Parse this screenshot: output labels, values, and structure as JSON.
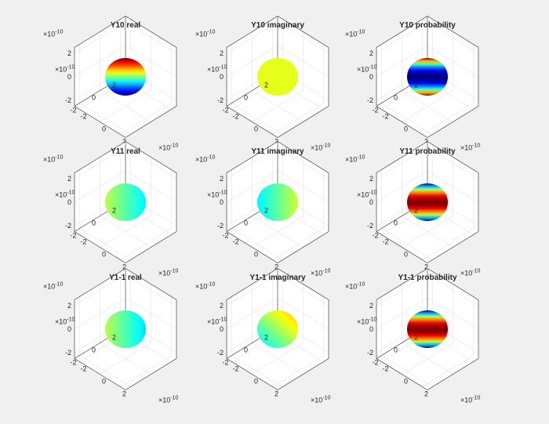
{
  "figure": {
    "background": "#f0f0f0",
    "axes_background": "#ffffff"
  },
  "chart_data": [
    {
      "type": "surface",
      "title": "Y10 real",
      "zlim": [
        -2,
        2
      ],
      "xlim": [
        -2,
        2
      ],
      "ylim": [
        -2,
        2
      ],
      "zticks": [
        "2",
        "0",
        "-2"
      ],
      "xticks": [
        "-2",
        "0",
        "2"
      ],
      "yticks": [
        "-2",
        "0",
        "2"
      ],
      "x_exponent": "10",
      "y_exponent": "10",
      "z_exponent": "10",
      "multiplier": "×10",
      "exponent_sign": "-",
      "colormap": "jet",
      "color_pattern": "vertical",
      "color_min": 0.0,
      "color_max": 1.0,
      "grid": true
    },
    {
      "type": "surface",
      "title": "Y10 imaginary",
      "zlim": [
        -2,
        2
      ],
      "xlim": [
        -2,
        2
      ],
      "ylim": [
        -2,
        2
      ],
      "zticks": [
        "2",
        "0",
        "-2"
      ],
      "xticks": [
        "-2",
        "0",
        "2"
      ],
      "yticks": [
        "-2",
        "0",
        "2"
      ],
      "x_exponent": "10",
      "y_exponent": "10",
      "z_exponent": "10",
      "multiplier": "×10",
      "exponent_sign": "-",
      "colormap": "jet",
      "color_pattern": "uniform",
      "color_min": 0.6,
      "color_max": 0.6,
      "grid": true
    },
    {
      "type": "surface",
      "title": "Y10 probability",
      "zlim": [
        -2,
        2
      ],
      "xlim": [
        -2,
        2
      ],
      "ylim": [
        -2,
        2
      ],
      "zticks": [
        "2",
        "0",
        "-2"
      ],
      "xticks": [
        "-2",
        "0",
        "2"
      ],
      "yticks": [
        "-2",
        "0",
        "2"
      ],
      "x_exponent": "10",
      "y_exponent": "10",
      "z_exponent": "10",
      "multiplier": "×10",
      "exponent_sign": "-",
      "colormap": "jet",
      "color_pattern": "poles-high",
      "color_min": 0.0,
      "color_max": 1.0,
      "grid": true
    },
    {
      "type": "surface",
      "title": "Y11 real",
      "zlim": [
        -2,
        2
      ],
      "xlim": [
        -2,
        2
      ],
      "ylim": [
        -2,
        2
      ],
      "zticks": [
        "2",
        "0",
        "-2"
      ],
      "xticks": [
        "-2",
        "0",
        "2"
      ],
      "yticks": [
        "-2",
        "0",
        "2"
      ],
      "x_exponent": "10",
      "y_exponent": "10",
      "z_exponent": "10",
      "multiplier": "×10",
      "exponent_sign": "-",
      "colormap": "jet",
      "color_pattern": "horizontal",
      "color_min": 0.36,
      "color_max": 0.56,
      "grid": true
    },
    {
      "type": "surface",
      "title": "Y11 imaginary",
      "zlim": [
        -2,
        2
      ],
      "xlim": [
        -2,
        2
      ],
      "ylim": [
        -2,
        2
      ],
      "zticks": [
        "2",
        "0",
        "-2"
      ],
      "xticks": [
        "-2",
        "0",
        "2"
      ],
      "yticks": [
        "-2",
        "0",
        "2"
      ],
      "x_exponent": "10",
      "y_exponent": "10",
      "z_exponent": "10",
      "multiplier": "×10",
      "exponent_sign": "-",
      "colormap": "jet",
      "color_pattern": "horizontal-reverse",
      "color_min": 0.36,
      "color_max": 0.58,
      "grid": true
    },
    {
      "type": "surface",
      "title": "Y11 probability",
      "zlim": [
        -2,
        2
      ],
      "xlim": [
        -2,
        2
      ],
      "ylim": [
        -2,
        2
      ],
      "zticks": [
        "2",
        "0",
        "-2"
      ],
      "xticks": [
        "-2",
        "0",
        "2"
      ],
      "yticks": [
        "-2",
        "0",
        "2"
      ],
      "x_exponent": "10",
      "y_exponent": "10",
      "z_exponent": "10",
      "multiplier": "×10",
      "exponent_sign": "-",
      "colormap": "jet",
      "color_pattern": "equator-high",
      "color_min": 0.0,
      "color_max": 1.0,
      "grid": true
    },
    {
      "type": "surface",
      "title": "Y1-1 real",
      "zlim": [
        -2,
        2
      ],
      "xlim": [
        -2,
        2
      ],
      "ylim": [
        -2,
        2
      ],
      "zticks": [
        "2",
        "0",
        "-2"
      ],
      "xticks": [
        "-2",
        "0",
        "2"
      ],
      "yticks": [
        "-2",
        "0",
        "2"
      ],
      "x_exponent": "10",
      "y_exponent": "10",
      "z_exponent": "10",
      "multiplier": "×10",
      "exponent_sign": "-",
      "colormap": "jet",
      "color_pattern": "horizontal",
      "color_min": 0.34,
      "color_max": 0.56,
      "grid": true
    },
    {
      "type": "surface",
      "title": "Y1-1 imaginary",
      "zlim": [
        -2,
        2
      ],
      "xlim": [
        -2,
        2
      ],
      "ylim": [
        -2,
        2
      ],
      "zticks": [
        "2",
        "0",
        "-2"
      ],
      "xticks": [
        "-2",
        "0",
        "2"
      ],
      "yticks": [
        "-2",
        "0",
        "2"
      ],
      "x_exponent": "10",
      "y_exponent": "10",
      "z_exponent": "10",
      "multiplier": "×10",
      "exponent_sign": "-",
      "colormap": "jet",
      "color_pattern": "diagonal",
      "color_min": 0.42,
      "color_max": 0.68,
      "grid": true
    },
    {
      "type": "surface",
      "title": "Y1-1 probability",
      "zlim": [
        -2,
        2
      ],
      "xlim": [
        -2,
        2
      ],
      "ylim": [
        -2,
        2
      ],
      "zticks": [
        "2",
        "0",
        "-2"
      ],
      "xticks": [
        "-2",
        "0",
        "2"
      ],
      "yticks": [
        "-2",
        "0",
        "2"
      ],
      "x_exponent": "10",
      "y_exponent": "10",
      "z_exponent": "10",
      "multiplier": "×10",
      "exponent_sign": "-",
      "colormap": "jet",
      "color_pattern": "equator-high",
      "color_min": 0.0,
      "color_max": 1.0,
      "grid": true
    }
  ]
}
